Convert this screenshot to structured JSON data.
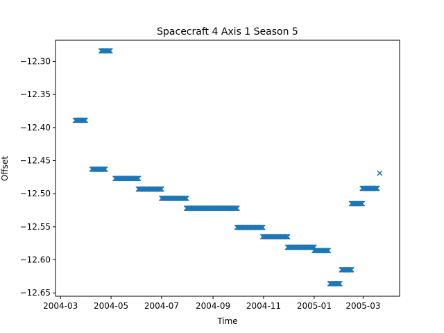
{
  "chart_data": {
    "type": "scatter",
    "title": "Spacecraft 4 Axis 1 Season 5",
    "xlabel": "Time",
    "ylabel": "Offset",
    "marker": "x",
    "series_color": "#1f77b4",
    "xlim": [
      "2004-02-24",
      "2005-04-14"
    ],
    "ylim": [
      -12.655,
      -12.268
    ],
    "xticks": [
      "2004-03",
      "2004-05",
      "2004-07",
      "2004-09",
      "2004-11",
      "2005-01",
      "2005-03"
    ],
    "yticks": [
      "-12.30",
      "-12.35",
      "-12.40",
      "-12.45",
      "-12.50",
      "-12.55",
      "-12.60",
      "-12.65"
    ],
    "grid": false,
    "segments": [
      {
        "start": "2004-03-19",
        "end": "2004-03-31",
        "y": -12.389
      },
      {
        "start": "2004-04-08",
        "end": "2004-04-24",
        "y": -12.463
      },
      {
        "start": "2004-04-19",
        "end": "2004-04-30",
        "y": -12.284
      },
      {
        "start": "2004-05-06",
        "end": "2004-06-03",
        "y": -12.477
      },
      {
        "start": "2004-06-03",
        "end": "2004-07-01",
        "y": -12.493
      },
      {
        "start": "2004-07-01",
        "end": "2004-07-31",
        "y": -12.507
      },
      {
        "start": "2004-07-31",
        "end": "2004-09-30",
        "y": -12.522
      },
      {
        "start": "2004-09-30",
        "end": "2004-10-31",
        "y": -12.551
      },
      {
        "start": "2004-10-31",
        "end": "2004-11-30",
        "y": -12.565
      },
      {
        "start": "2004-11-30",
        "end": "2005-01-01",
        "y": -12.581
      },
      {
        "start": "2005-01-01",
        "end": "2005-01-18",
        "y": -12.586
      },
      {
        "start": "2005-01-20",
        "end": "2005-02-01",
        "y": -12.636
      },
      {
        "start": "2005-02-03",
        "end": "2005-02-15",
        "y": -12.615
      },
      {
        "start": "2005-02-15",
        "end": "2005-02-28",
        "y": -12.515
      },
      {
        "start": "2005-02-28",
        "end": "2005-03-18",
        "y": -12.492
      }
    ],
    "points": [
      {
        "x": "2005-03-21",
        "y": -12.469
      }
    ]
  }
}
